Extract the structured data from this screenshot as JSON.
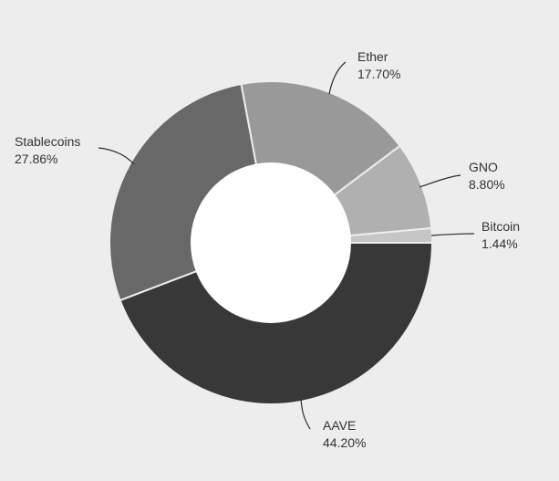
{
  "chart_data": {
    "type": "pie",
    "title": "",
    "donut": true,
    "legend": "none",
    "slices": [
      {
        "label": "AAVE",
        "value": 44.2,
        "value_label": "44.20%",
        "color": "#383838"
      },
      {
        "label": "Stablecoins",
        "value": 27.86,
        "value_label": "27.86%",
        "color": "#686868"
      },
      {
        "label": "Ether",
        "value": 17.7,
        "value_label": "17.70%",
        "color": "#999999"
      },
      {
        "label": "GNO",
        "value": 8.8,
        "value_label": "8.80%",
        "color": "#b0b0b0"
      },
      {
        "label": "Bitcoin",
        "value": 1.44,
        "value_label": "1.44%",
        "color": "#c6c6c6"
      }
    ]
  }
}
